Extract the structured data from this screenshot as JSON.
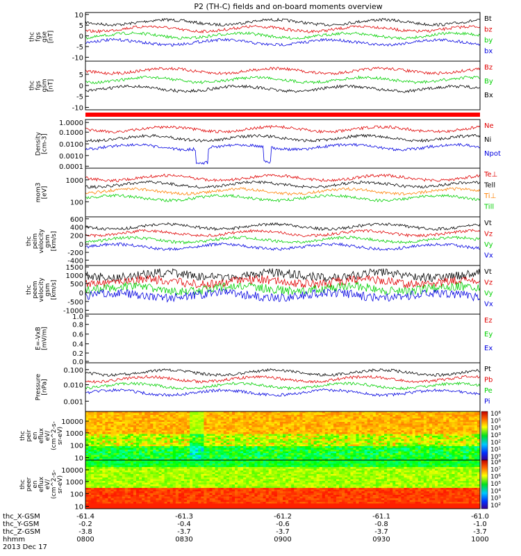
{
  "title": "P2 (TH-C) fields and on-board moments overview",
  "colors": {
    "black": "#000000",
    "red": "#e00000",
    "green": "#00d000",
    "blue": "#0000e0",
    "orange": "#ff8000"
  },
  "chart_data": [
    {
      "type": "line",
      "ylabel": [
        "thc",
        "fgs",
        "gse",
        "[nT]"
      ],
      "yticks": [
        "10",
        "5",
        "0",
        "-5",
        "-10"
      ],
      "legend": [
        {
          "text": "Bt",
          "color": "black"
        },
        {
          "text": "bz",
          "color": "red"
        },
        {
          "text": "by",
          "color": "green"
        },
        {
          "text": "bx",
          "color": "blue"
        }
      ]
    },
    {
      "type": "line",
      "ylabel": [
        "thc",
        "fgs",
        "gsm",
        "[nT]"
      ],
      "yticks": [
        "5",
        "0",
        "-5",
        "-10"
      ],
      "legend": [
        {
          "text": "Bz",
          "color": "red"
        },
        {
          "text": "By",
          "color": "green"
        },
        {
          "text": "Bx",
          "color": "black"
        }
      ]
    },
    {
      "type": "line",
      "ylabel": [
        "Density",
        "[cm-3]"
      ],
      "yticks": [
        "1.0000",
        "0.1000",
        "0.0100",
        "0.0010",
        "0.0001"
      ],
      "legend": [
        {
          "text": "Ne",
          "color": "red"
        },
        {
          "text": "Ni",
          "color": "black"
        },
        {
          "text": "Npot",
          "color": "blue"
        }
      ]
    },
    {
      "type": "line",
      "ylabel": [
        "mom3",
        "[eV]"
      ],
      "yticks": [
        "1000",
        "100"
      ],
      "legend": [
        {
          "text": "Te⊥",
          "color": "red"
        },
        {
          "text": "Tell",
          "color": "black"
        },
        {
          "text": "Ti⊥",
          "color": "orange"
        },
        {
          "text": "Till",
          "color": "green"
        }
      ]
    },
    {
      "type": "line",
      "ylabel": [
        "thc",
        "peim",
        "velocity",
        "gsm",
        "[km/s]"
      ],
      "yticks": [
        "600",
        "400",
        "200",
        "0",
        "-200",
        "-400"
      ],
      "legend": [
        {
          "text": "Vt",
          "color": "black"
        },
        {
          "text": "Vz",
          "color": "red"
        },
        {
          "text": "Vy",
          "color": "green"
        },
        {
          "text": "Vx",
          "color": "blue"
        }
      ]
    },
    {
      "type": "line",
      "ylabel": [
        "thc",
        "peem",
        "velocity",
        "gsm",
        "[km/s]"
      ],
      "yticks": [
        "1500",
        "1000",
        "500",
        "0",
        "-500",
        "-1000"
      ],
      "legend": [
        {
          "text": "Vt",
          "color": "black"
        },
        {
          "text": "Vz",
          "color": "red"
        },
        {
          "text": "Vy",
          "color": "green"
        },
        {
          "text": "Vx",
          "color": "blue"
        }
      ]
    },
    {
      "type": "line",
      "ylabel": [
        "E=-VxB",
        "[mV/m]"
      ],
      "yticks": [
        "1.0",
        "0.8",
        "0.6",
        "0.4",
        "0.2",
        "0.0"
      ],
      "legend": [
        {
          "text": "Ez",
          "color": "red"
        },
        {
          "text": "Ey",
          "color": "green"
        },
        {
          "text": "Ex",
          "color": "blue"
        }
      ]
    },
    {
      "type": "line",
      "ylabel": [
        "Pressure",
        "[nPa]"
      ],
      "yticks": [
        "0.100",
        "0.010",
        "0.001"
      ],
      "legend": [
        {
          "text": "Pt",
          "color": "black"
        },
        {
          "text": "Pb",
          "color": "red"
        },
        {
          "text": "Pe",
          "color": "green"
        },
        {
          "text": "Pi",
          "color": "blue"
        }
      ]
    },
    {
      "type": "heatmap",
      "ylabel": [
        "thc",
        "peir",
        "en",
        "eflux",
        "eV/",
        "(cm^2-s-",
        "sr-eV)"
      ],
      "yticks": [
        "10000",
        "1000",
        "100",
        "10"
      ],
      "colorbar": [
        "10⁶",
        "10⁵",
        "10⁴",
        "10³",
        "10²",
        "10¹",
        "10⁰"
      ]
    },
    {
      "type": "heatmap",
      "ylabel": [
        "thc",
        "peer",
        "en",
        "eflux",
        "eV/",
        "(cm^2-s-",
        "sr-eV)"
      ],
      "yticks": [
        "10000",
        "1000",
        "100",
        "10"
      ],
      "colorbar": [
        "10⁸",
        "10⁷",
        "10⁶",
        "10⁵",
        "10⁴",
        "10³",
        "10²"
      ]
    }
  ],
  "xaxis": {
    "rows": [
      {
        "label": "thc_X-GSM",
        "values": [
          "-61.4",
          "-61.3",
          "-61.2",
          "-61.1",
          "-61.0"
        ]
      },
      {
        "label": "thc_Y-GSM",
        "values": [
          "-0.2",
          "-0.4",
          "-0.6",
          "-0.8",
          "-1.0"
        ]
      },
      {
        "label": "thc_Z-GSM",
        "values": [
          "-3.8",
          "-3.7",
          "-3.7",
          "-3.7",
          "-3.7"
        ]
      },
      {
        "label": "hhmm",
        "values": [
          "0800",
          "0830",
          "0900",
          "0930",
          "1000"
        ]
      }
    ],
    "date": "2013 Dec 17"
  }
}
